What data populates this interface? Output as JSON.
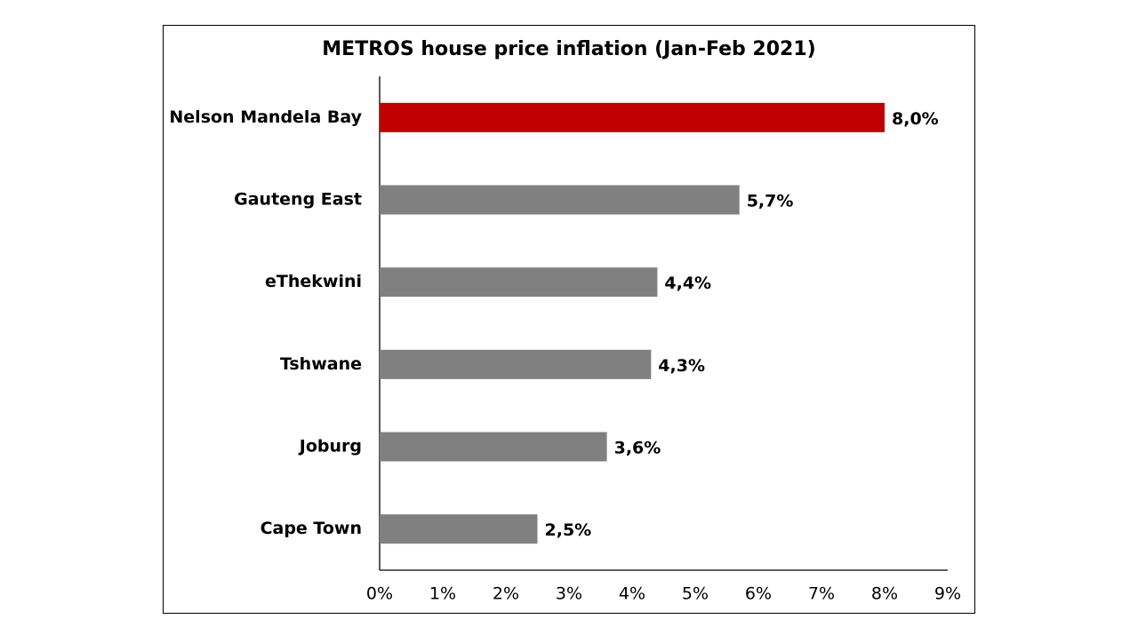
{
  "chart_data": {
    "type": "bar",
    "orientation": "horizontal",
    "title": "METROS house price inflation (Jan-Feb 2021)",
    "categories": [
      "Nelson Mandela Bay",
      "Gauteng East",
      "eThekwini",
      "Tshwane",
      "Joburg",
      "Cape Town"
    ],
    "values": [
      8.0,
      5.7,
      4.4,
      4.3,
      3.6,
      2.5
    ],
    "value_labels": [
      "8,0%",
      "5,7%",
      "4,4%",
      "4,3%",
      "3,6%",
      "2,5%"
    ],
    "colors": [
      "#c00000",
      "#808080",
      "#808080",
      "#808080",
      "#808080",
      "#808080"
    ],
    "xlim": [
      0,
      9
    ],
    "xticks": [
      {
        "value": 0,
        "label": "0%"
      },
      {
        "value": 1,
        "label": "1%"
      },
      {
        "value": 2,
        "label": "2%"
      },
      {
        "value": 3,
        "label": "3%"
      },
      {
        "value": 4,
        "label": "4%"
      },
      {
        "value": 5,
        "label": "5%"
      },
      {
        "value": 6,
        "label": "6%"
      },
      {
        "value": 7,
        "label": "7%"
      },
      {
        "value": 8,
        "label": "8%"
      },
      {
        "value": 9,
        "label": "9%"
      }
    ],
    "grid": false
  }
}
